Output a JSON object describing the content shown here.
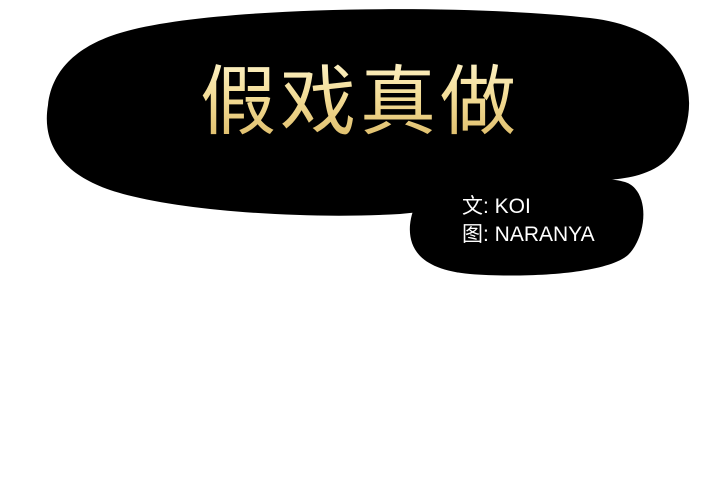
{
  "title": "假戏真做",
  "credits": {
    "writer": "文: KOI",
    "artist": "图: NARANYA"
  },
  "colors": {
    "bubble": "#000000",
    "title_text": "#f3dc96",
    "credit_text": "#ffffff",
    "background": "#ffffff"
  }
}
